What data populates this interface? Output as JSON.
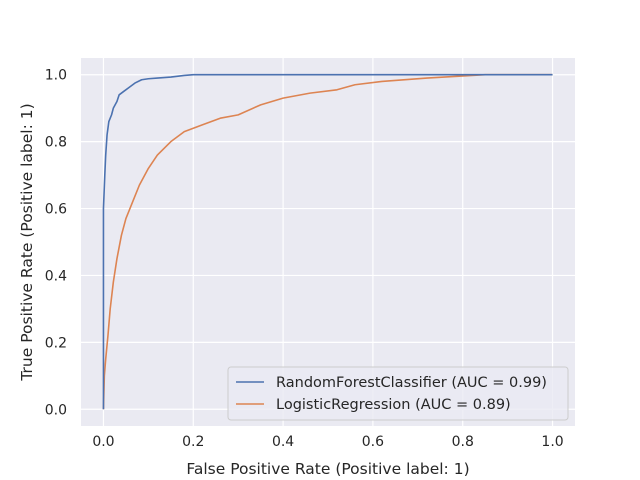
{
  "chart_data": {
    "type": "line",
    "title": "",
    "xlabel": "False Positive Rate (Positive label: 1)",
    "ylabel": "True Positive Rate (Positive label: 1)",
    "xlim": [
      -0.05,
      1.05
    ],
    "ylim": [
      -0.05,
      1.05
    ],
    "xticks": [
      0.0,
      0.2,
      0.4,
      0.6,
      0.8,
      1.0
    ],
    "yticks": [
      0.0,
      0.2,
      0.4,
      0.6,
      0.8,
      1.0
    ],
    "xtick_labels": [
      "0.0",
      "0.2",
      "0.4",
      "0.6",
      "0.8",
      "1.0"
    ],
    "ytick_labels": [
      "0.0",
      "0.2",
      "0.4",
      "0.6",
      "0.8",
      "1.0"
    ],
    "grid": true,
    "legend_position": "lower-right",
    "background": "#eaeaf2",
    "series": [
      {
        "name": "RandomForestClassifier (AUC = 0.99)",
        "color": "#4c72b0",
        "points": [
          [
            0.0,
            0.0
          ],
          [
            0.0,
            0.6
          ],
          [
            0.003,
            0.7
          ],
          [
            0.005,
            0.76
          ],
          [
            0.008,
            0.82
          ],
          [
            0.012,
            0.86
          ],
          [
            0.018,
            0.88
          ],
          [
            0.022,
            0.9
          ],
          [
            0.03,
            0.92
          ],
          [
            0.035,
            0.94
          ],
          [
            0.045,
            0.95
          ],
          [
            0.055,
            0.96
          ],
          [
            0.07,
            0.975
          ],
          [
            0.085,
            0.985
          ],
          [
            0.1,
            0.988
          ],
          [
            0.12,
            0.99
          ],
          [
            0.15,
            0.993
          ],
          [
            0.18,
            0.998
          ],
          [
            0.2,
            1.0
          ],
          [
            1.0,
            1.0
          ]
        ]
      },
      {
        "name": "LogisticRegression (AUC = 0.89)",
        "color": "#dd8452",
        "points": [
          [
            0.0,
            0.0
          ],
          [
            0.002,
            0.1
          ],
          [
            0.005,
            0.15
          ],
          [
            0.01,
            0.22
          ],
          [
            0.015,
            0.3
          ],
          [
            0.022,
            0.38
          ],
          [
            0.03,
            0.45
          ],
          [
            0.04,
            0.52
          ],
          [
            0.05,
            0.57
          ],
          [
            0.065,
            0.62
          ],
          [
            0.08,
            0.67
          ],
          [
            0.1,
            0.72
          ],
          [
            0.12,
            0.76
          ],
          [
            0.15,
            0.8
          ],
          [
            0.18,
            0.83
          ],
          [
            0.22,
            0.85
          ],
          [
            0.26,
            0.87
          ],
          [
            0.3,
            0.88
          ],
          [
            0.35,
            0.91
          ],
          [
            0.4,
            0.93
          ],
          [
            0.46,
            0.945
          ],
          [
            0.52,
            0.955
          ],
          [
            0.56,
            0.97
          ],
          [
            0.62,
            0.98
          ],
          [
            0.72,
            0.99
          ],
          [
            0.85,
            1.0
          ],
          [
            1.0,
            1.0
          ]
        ]
      }
    ]
  }
}
